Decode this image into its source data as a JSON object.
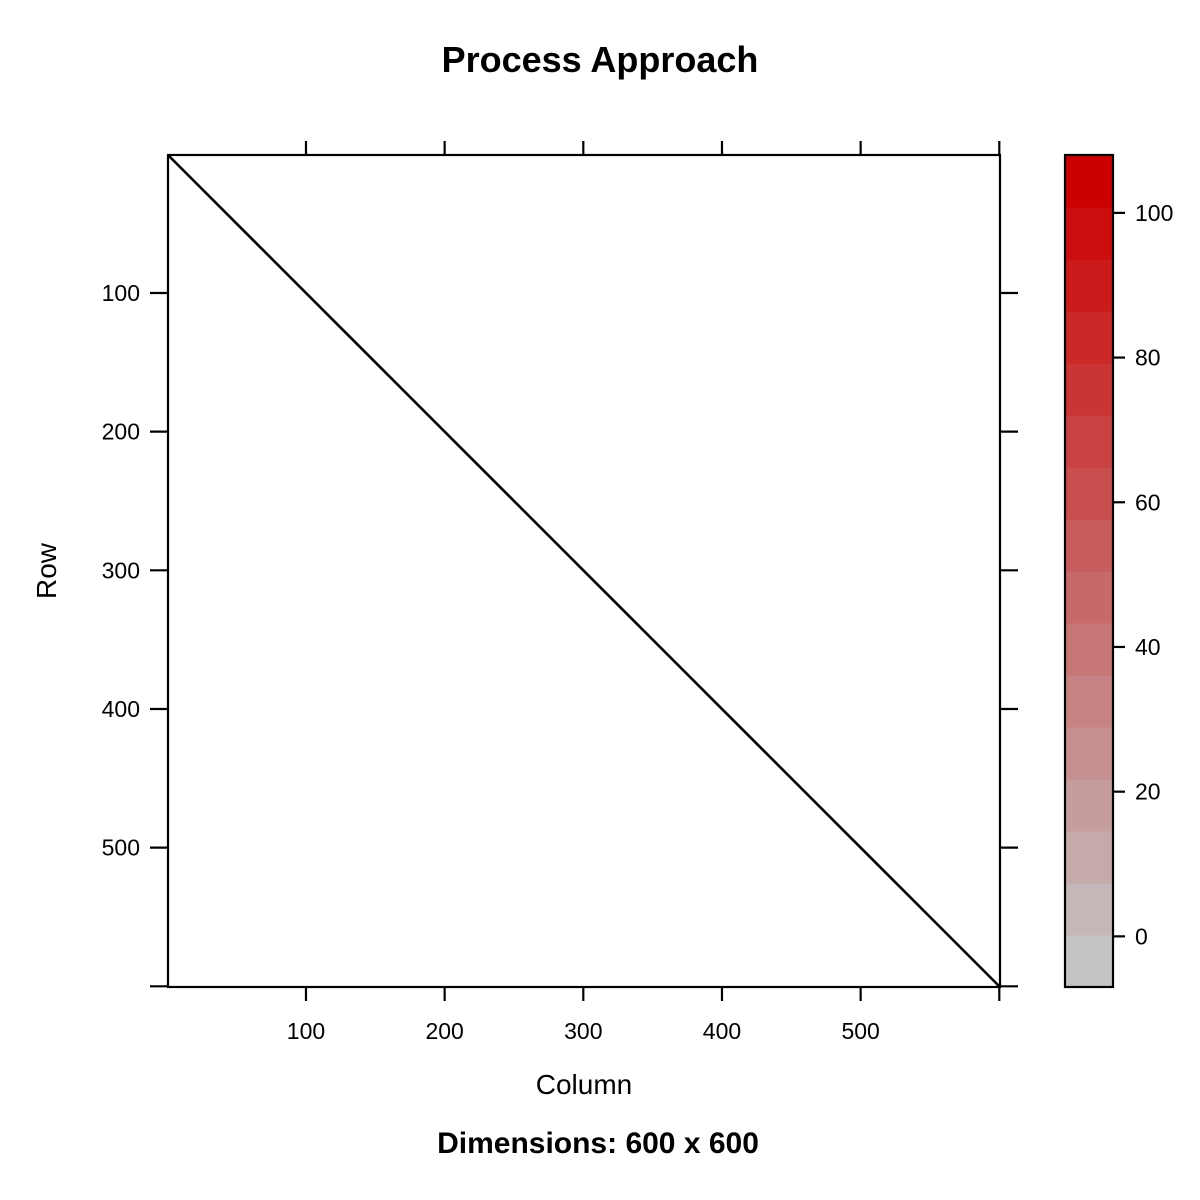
{
  "chart_data": {
    "type": "heatmap",
    "title": "Process Approach",
    "subtitle": "Dimensions: 600 x 600",
    "xlabel": "Column",
    "ylabel": "Row",
    "xlim": [
      1,
      600
    ],
    "ylim": [
      1,
      600
    ],
    "y_reversed": true,
    "x_ticks": [
      100,
      200,
      300,
      400,
      500
    ],
    "y_ticks": [
      100,
      200,
      300,
      400,
      500
    ],
    "grid": false,
    "matrix": {
      "rows": 600,
      "cols": 600,
      "pattern": "diagonal",
      "diagonal_color": "#000000",
      "background_color": "#ffffff"
    },
    "colorkey": {
      "placement": "right",
      "range": [
        -7,
        108
      ],
      "tick_values": [
        0,
        20,
        40,
        60,
        80,
        100
      ],
      "tick_labels": [
        "0",
        "20",
        "40",
        "60",
        "80",
        "100"
      ],
      "low_color": "#c4c4c4",
      "high_color": "#cc0000",
      "bins": 16
    }
  }
}
